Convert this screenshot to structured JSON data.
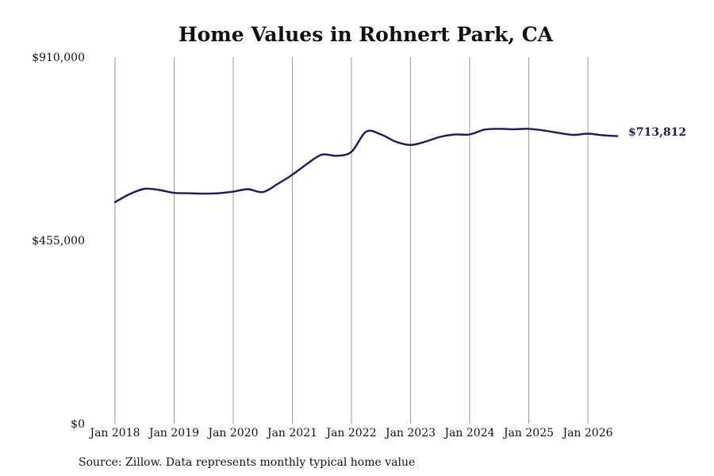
{
  "chart_data": {
    "type": "line",
    "title": "Home Values in Rohnert Park, CA",
    "xlabel": "",
    "ylabel": "",
    "ylim": [
      0,
      910000
    ],
    "y_ticks": [
      "$0",
      "$455,000",
      "$910,000"
    ],
    "y_tick_values": [
      0,
      455000,
      910000
    ],
    "x_ticks": [
      "Jan 2018",
      "Jan 2019",
      "Jan 2020",
      "Jan 2021",
      "Jan 2022",
      "Jan 2023",
      "Jan 2024",
      "Jan 2025",
      "Jan 2026"
    ],
    "x_tick_values": [
      "2018-01",
      "2019-01",
      "2020-01",
      "2021-01",
      "2022-01",
      "2023-01",
      "2024-01",
      "2025-01",
      "2026-01"
    ],
    "x_range": [
      "2018-01",
      "2026-07"
    ],
    "grid": "vertical",
    "legend": "none",
    "line_color": "#1a1a5e",
    "series": [
      {
        "x": [
          "2018-01",
          "2018-04",
          "2018-07",
          "2018-10",
          "2019-01",
          "2019-04",
          "2019-07",
          "2019-10",
          "2020-01",
          "2020-04",
          "2020-07",
          "2020-10",
          "2021-01",
          "2021-04",
          "2021-07",
          "2021-10",
          "2022-01",
          "2022-04",
          "2022-07",
          "2022-10",
          "2023-01",
          "2023-04",
          "2023-07",
          "2023-10",
          "2024-01",
          "2024-04",
          "2024-07",
          "2024-10",
          "2025-01",
          "2025-04",
          "2025-07",
          "2025-10",
          "2026-01",
          "2026-04",
          "2026-07"
        ],
        "values": [
          550000,
          570000,
          583000,
          580000,
          573000,
          572000,
          571000,
          572000,
          576000,
          582000,
          575000,
          595000,
          618000,
          645000,
          668000,
          665000,
          675000,
          725000,
          718000,
          700000,
          692000,
          700000,
          712000,
          718000,
          718000,
          730000,
          732000,
          731000,
          732000,
          728000,
          722000,
          717000,
          720000,
          716000,
          713812
        ]
      }
    ],
    "end_label": "$713,812",
    "source": "Source: Zillow. Data represents monthly typical home value"
  }
}
